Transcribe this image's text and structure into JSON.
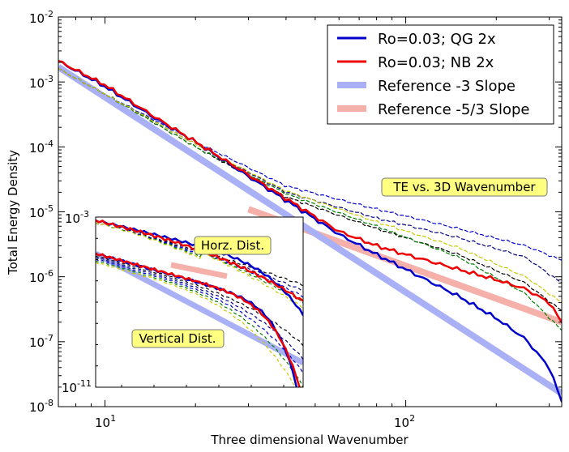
{
  "chart_data": {
    "type": "line",
    "xlabel": "Three dimensional Wavenumber",
    "ylabel": "Total Energy Density",
    "xscale": "log",
    "yscale": "log",
    "xlim": [
      7,
      330
    ],
    "ylim": [
      1e-08,
      0.01
    ],
    "x_ticks": [
      {
        "base": "10",
        "exp": "1",
        "value": 10
      },
      {
        "base": "10",
        "exp": "2",
        "value": 100
      }
    ],
    "y_ticks": [
      {
        "base": "10",
        "exp": "-8",
        "value": 1e-08
      },
      {
        "base": "10",
        "exp": "-7",
        "value": 1e-07
      },
      {
        "base": "10",
        "exp": "-6",
        "value": 1e-06
      },
      {
        "base": "10",
        "exp": "-5",
        "value": 1e-05
      },
      {
        "base": "10",
        "exp": "-4",
        "value": 0.0001
      },
      {
        "base": "10",
        "exp": "-3",
        "value": 0.001
      },
      {
        "base": "10",
        "exp": "-2",
        "value": 0.01
      }
    ],
    "legend": {
      "placement": "top-right",
      "entries": [
        {
          "label": "Ro=0.03; QG 2x",
          "color": "#0000cc"
        },
        {
          "label": "Ro=0.03; NB 2x",
          "color": "#ee0000"
        },
        {
          "label": "Reference -3 Slope",
          "color": "#aab0f5"
        },
        {
          "label": "Reference -5/3 Slope",
          "color": "#f5b0aa"
        }
      ]
    },
    "annotation": "TE vs. 3D Wavenumber",
    "series": [
      {
        "name": "Ro=0.03; QG 2x",
        "color": "#0000cc",
        "style": "solid",
        "x": [
          7,
          10,
          15,
          20,
          30,
          40,
          60,
          80,
          100,
          150,
          200,
          250,
          300,
          330
        ],
        "y": [
          0.0021,
          0.00085,
          0.00026,
          0.00012,
          3.5e-05,
          1.5e-05,
          4.5e-06,
          2.2e-06,
          1.3e-06,
          5e-07,
          2.3e-07,
          1.1e-07,
          4e-08,
          1.2e-08
        ]
      },
      {
        "name": "Ro=0.03; NB 2x",
        "color": "#ee0000",
        "style": "solid",
        "x": [
          7,
          10,
          15,
          20,
          30,
          40,
          60,
          80,
          100,
          150,
          200,
          250,
          300,
          330
        ],
        "y": [
          0.0021,
          0.0009,
          0.00027,
          0.00012,
          3.7e-05,
          1.6e-05,
          5e-06,
          3e-06,
          2.2e-06,
          1.3e-06,
          9e-07,
          6.5e-07,
          4e-07,
          2e-07
        ]
      },
      {
        "name": "Reference -3 Slope",
        "color": "#aab0f5",
        "style": "solid",
        "x": [
          7,
          330
        ],
        "y": [
          0.0017,
          1.6e-08
        ]
      },
      {
        "name": "Reference -5/3 Slope",
        "color": "#f5b0aa",
        "style": "solid",
        "x": [
          30,
          330
        ],
        "y": [
          1.1e-05,
          2e-07
        ]
      },
      {
        "color": "#000000",
        "style": "dashed",
        "x": [
          7,
          10,
          20,
          40,
          80,
          150,
          250,
          330
        ],
        "y": [
          0.0016,
          0.00065,
          0.0001,
          1.7e-05,
          5.5e-06,
          2.2e-06,
          8e-07,
          3e-07
        ]
      },
      {
        "color": "#000080",
        "style": "dashed",
        "x": [
          7,
          10,
          20,
          40,
          80,
          150,
          250,
          330
        ],
        "y": [
          0.0016,
          0.00065,
          0.00011,
          2e-05,
          8e-06,
          4e-06,
          2e-06,
          8e-07
        ]
      },
      {
        "color": "#0000cc",
        "style": "dashed",
        "x": [
          7,
          10,
          20,
          40,
          80,
          150,
          250,
          330
        ],
        "y": [
          0.0016,
          0.00065,
          0.00012,
          2.5e-05,
          1.1e-05,
          5.5e-06,
          3e-06,
          1.8e-06
        ]
      },
      {
        "color": "#008000",
        "style": "dashed",
        "x": [
          7,
          10,
          20,
          40,
          80,
          150,
          250,
          330
        ],
        "y": [
          0.0016,
          0.00065,
          0.0001,
          1.9e-05,
          6e-06,
          2e-06,
          5.5e-07,
          1.5e-07
        ]
      },
      {
        "color": "#c8c800",
        "style": "dashed",
        "x": [
          7,
          10,
          20,
          40,
          80,
          150,
          250,
          330
        ],
        "y": [
          0.0016,
          0.00065,
          0.00011,
          2.1e-05,
          7e-06,
          2.8e-06,
          1e-06,
          4e-07
        ]
      }
    ],
    "inset": {
      "top_tick": {
        "base": "10",
        "exp": "-3"
      },
      "bottom_tick": {
        "base": "10",
        "exp": "-11"
      },
      "labels": [
        "Horz. Dist.",
        "Vertical Dist."
      ]
    }
  }
}
